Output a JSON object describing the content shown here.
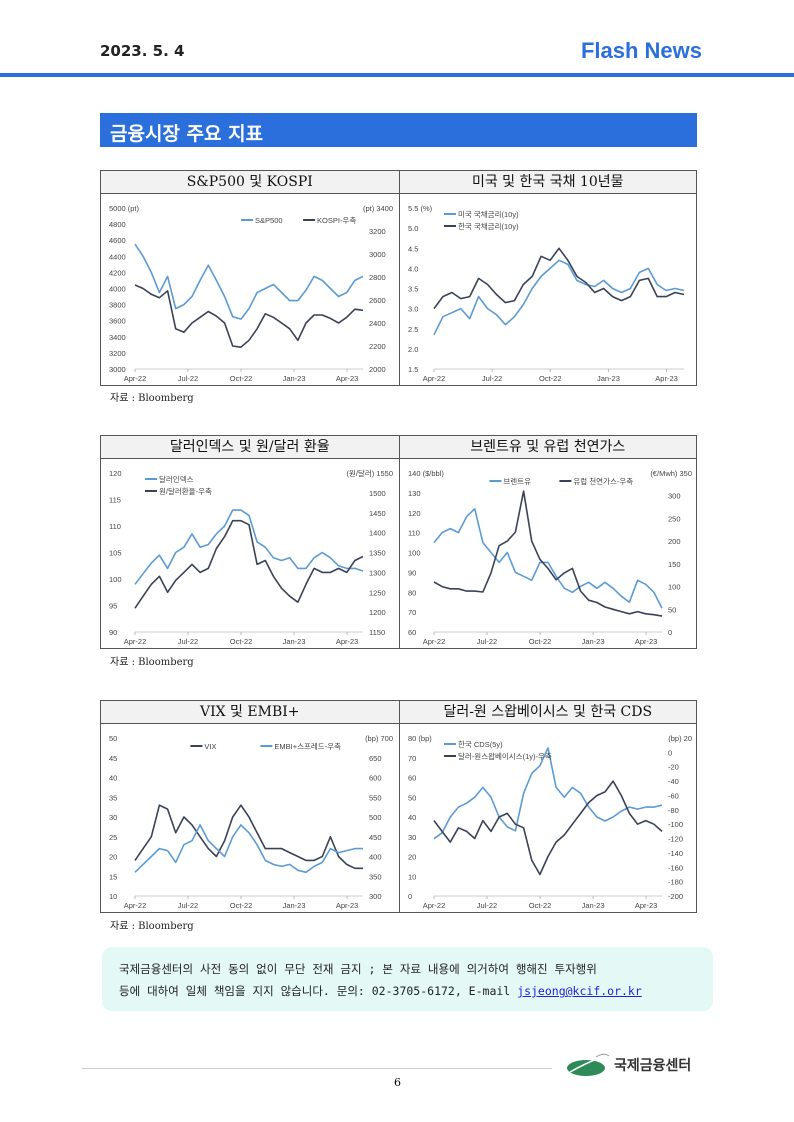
{
  "header": {
    "date": "2023. 5. 4",
    "brand": "Flash News"
  },
  "section_title": "금융시장 주요 지표",
  "source": "자료 : Bloomberg",
  "colors": {
    "accent": "#2a6fdb",
    "light_series": "#5b9bd5",
    "dark_series": "#3a4256"
  },
  "chart_data": [
    {
      "type": "line",
      "title": "S&P500 및 KOSPI",
      "left_unit": "5000 (pt)",
      "right_unit": "(pt) 3400",
      "ylim": [
        3000,
        5000
      ],
      "yticks": [
        "3000",
        "3200",
        "3400",
        "3600",
        "3800",
        "4000",
        "4200",
        "4400",
        "4600",
        "4800"
      ],
      "y2lim": [
        2000,
        3400
      ],
      "y2ticks": [
        "2000",
        "2200",
        "2400",
        "2600",
        "2800",
        "3000",
        "3200"
      ],
      "xticks": [
        "Apr-22",
        "Jul-22",
        "Oct-22",
        "Jan-23",
        "Apr-23"
      ],
      "legend": "top-right",
      "series": [
        {
          "name": "S&P500",
          "axis": "left",
          "color": "light",
          "values": [
            4550,
            4400,
            4200,
            3950,
            4150,
            3750,
            3800,
            3900,
            4100,
            4290,
            4100,
            3900,
            3650,
            3620,
            3750,
            3950,
            4000,
            4050,
            3950,
            3850,
            3850,
            3980,
            4150,
            4100,
            4000,
            3900,
            3950,
            4100,
            4150
          ]
        },
        {
          "name": "KOSPI-우축",
          "axis": "right",
          "color": "dark",
          "values": [
            2730,
            2700,
            2650,
            2620,
            2680,
            2350,
            2320,
            2400,
            2450,
            2500,
            2460,
            2400,
            2200,
            2190,
            2250,
            2350,
            2480,
            2450,
            2400,
            2350,
            2250,
            2400,
            2470,
            2470,
            2440,
            2400,
            2450,
            2520,
            2510
          ]
        }
      ]
    },
    {
      "type": "line",
      "title": "미국 및 한국 국채 10년물",
      "left_unit": "5.5  (%)",
      "right_unit": "",
      "ylim": [
        1.5,
        5.5
      ],
      "yticks": [
        "1.5",
        "2.0",
        "2.5",
        "3.0",
        "3.5",
        "4.0",
        "4.5",
        "5.0"
      ],
      "y2lim": null,
      "y2ticks": [],
      "xticks": [
        "Apr-22",
        "Jul-22",
        "Oct-22",
        "Jan-23",
        "Apr-23"
      ],
      "legend": "top-left",
      "series": [
        {
          "name": "미국 국채금리(10y)",
          "axis": "left",
          "color": "light",
          "values": [
            2.35,
            2.8,
            2.9,
            3.0,
            2.75,
            3.3,
            3.0,
            2.85,
            2.6,
            2.8,
            3.1,
            3.5,
            3.8,
            4.0,
            4.2,
            4.1,
            3.7,
            3.6,
            3.55,
            3.7,
            3.5,
            3.4,
            3.5,
            3.9,
            4.0,
            3.6,
            3.45,
            3.5,
            3.45
          ]
        },
        {
          "name": "한국 국채금리(10y)",
          "axis": "left",
          "color": "dark",
          "values": [
            3.0,
            3.3,
            3.4,
            3.25,
            3.3,
            3.75,
            3.6,
            3.35,
            3.15,
            3.2,
            3.6,
            3.8,
            4.3,
            4.2,
            4.5,
            4.2,
            3.8,
            3.65,
            3.4,
            3.5,
            3.3,
            3.2,
            3.3,
            3.7,
            3.75,
            3.3,
            3.3,
            3.4,
            3.35
          ]
        }
      ]
    },
    {
      "type": "line",
      "title": "달러인덱스 및 원/달러 환율",
      "left_unit": "120",
      "right_unit": "(원/달러) 1550",
      "ylim": [
        90,
        120
      ],
      "yticks": [
        "90",
        "95",
        "100",
        "105",
        "110",
        "115"
      ],
      "y2lim": [
        1150,
        1550
      ],
      "y2ticks": [
        "1150",
        "1200",
        "1250",
        "1300",
        "1350",
        "1400",
        "1450",
        "1500"
      ],
      "xticks": [
        "Apr-22",
        "Jul-22",
        "Oct-22",
        "Jan-23",
        "Apr-23"
      ],
      "legend": "top-left",
      "series": [
        {
          "name": "달러인덱스",
          "axis": "left",
          "color": "light",
          "values": [
            99,
            101,
            103,
            104.5,
            102,
            105,
            106,
            108.5,
            106,
            106.5,
            108.5,
            110,
            113,
            113,
            112,
            107,
            106,
            104,
            103.5,
            104,
            102,
            102,
            104,
            105,
            104,
            102.5,
            102,
            102,
            101.5
          ]
        },
        {
          "name": "원/달러환율-우축",
          "axis": "right",
          "color": "dark",
          "values": [
            1210,
            1240,
            1270,
            1290,
            1250,
            1280,
            1300,
            1320,
            1300,
            1310,
            1360,
            1390,
            1430,
            1430,
            1420,
            1320,
            1330,
            1290,
            1260,
            1240,
            1225,
            1270,
            1310,
            1300,
            1300,
            1310,
            1300,
            1330,
            1340
          ]
        }
      ]
    },
    {
      "type": "line",
      "title": "브렌트유 및 유럽 천연가스",
      "left_unit": "140  ($/bbl)",
      "right_unit": "(€/Mwh)  350",
      "ylim": [
        60,
        140
      ],
      "yticks": [
        "60",
        "70",
        "80",
        "90",
        "100",
        "110",
        "120",
        "130"
      ],
      "y2lim": [
        0,
        350
      ],
      "y2ticks": [
        "0",
        "50",
        "100",
        "150",
        "200",
        "250",
        "300"
      ],
      "xticks": [
        "Apr-22",
        "Jul-22",
        "Oct-22",
        "Jan-23",
        "Apr-23"
      ],
      "legend": "top-center",
      "series": [
        {
          "name": "브렌트유",
          "axis": "left",
          "color": "light",
          "values": [
            105,
            110,
            112,
            110,
            118,
            122,
            105,
            100,
            95,
            100,
            90,
            88,
            86,
            95,
            95,
            88,
            82,
            80,
            83,
            85,
            82,
            85,
            82,
            78,
            75,
            86,
            84,
            80,
            72
          ]
        },
        {
          "name": "유럽 천연가스-우축",
          "axis": "right",
          "color": "dark",
          "values": [
            110,
            100,
            95,
            95,
            90,
            90,
            88,
            130,
            190,
            200,
            220,
            310,
            200,
            160,
            140,
            115,
            130,
            140,
            90,
            70,
            65,
            55,
            50,
            45,
            40,
            45,
            40,
            38,
            35
          ]
        }
      ]
    },
    {
      "type": "line",
      "title": "VIX 및 EMBI+",
      "left_unit": "50",
      "right_unit": "(bp)  700",
      "ylim": [
        10,
        50
      ],
      "yticks": [
        "10",
        "15",
        "20",
        "25",
        "30",
        "35",
        "40",
        "45"
      ],
      "y2lim": [
        300,
        700
      ],
      "y2ticks": [
        "300",
        "350",
        "400",
        "450",
        "500",
        "550",
        "600",
        "650"
      ],
      "xticks": [
        "Apr-22",
        "Jul-22",
        "Oct-22",
        "Jan-23",
        "Apr-23"
      ],
      "legend": "top-center",
      "series": [
        {
          "name": "VIX",
          "axis": "left",
          "color": "dark",
          "values": [
            19,
            22,
            25,
            33,
            32,
            26,
            30,
            28,
            25,
            22,
            20,
            24,
            30,
            33,
            30,
            26,
            22,
            22,
            22,
            21,
            20,
            19,
            19,
            20,
            25,
            20,
            18,
            17,
            17
          ]
        },
        {
          "name": "EMBI+스프레드-우축",
          "axis": "right",
          "color": "light",
          "values": [
            360,
            380,
            400,
            420,
            415,
            385,
            430,
            440,
            480,
            440,
            420,
            400,
            450,
            480,
            460,
            430,
            390,
            380,
            375,
            380,
            365,
            360,
            375,
            385,
            420,
            410,
            415,
            420,
            420
          ]
        }
      ]
    },
    {
      "type": "line",
      "title": "달러-원 스왑베이시스 및 한국 CDS",
      "left_unit": "80   (bp)",
      "right_unit": "(bp)  20",
      "ylim": [
        0,
        80
      ],
      "yticks": [
        "0",
        "10",
        "20",
        "30",
        "40",
        "50",
        "60",
        "70"
      ],
      "y2lim": [
        -200,
        20
      ],
      "y2ticks": [
        "-200",
        "-180",
        "-160",
        "-140",
        "-120",
        "-100",
        "-80",
        "-60",
        "-40",
        "-20",
        "0"
      ],
      "xticks": [
        "Apr-22",
        "Jul-22",
        "Oct-22",
        "Jan-23",
        "Apr-23"
      ],
      "legend": "top-left",
      "series": [
        {
          "name": "한국 CDS(5y)",
          "axis": "left",
          "color": "light",
          "values": [
            29,
            32,
            40,
            45,
            47,
            50,
            55,
            50,
            40,
            35,
            33,
            52,
            62,
            66,
            75,
            55,
            50,
            55,
            52,
            45,
            40,
            38,
            40,
            43,
            45,
            44,
            45,
            45,
            46
          ]
        },
        {
          "name": "달러-원스왑베이시스(1y)-우축",
          "axis": "right",
          "color": "dark",
          "values": [
            -95,
            -110,
            -125,
            -105,
            -110,
            -120,
            -95,
            -110,
            -90,
            -85,
            -100,
            -105,
            -150,
            -170,
            -145,
            -125,
            -115,
            -100,
            -85,
            -70,
            -60,
            -55,
            -40,
            -60,
            -85,
            -100,
            -95,
            -100,
            -110
          ]
        }
      ]
    }
  ],
  "notice": {
    "line1": "국제금융센터의 사전 동의 없이 무단 전재 금지 ; 본 자료 내용에 의거하여 행해진 투자행위",
    "line2": "등에 대하여 일체 책임을 지지 않습니다. 문의: 02-3705-6172, E-mail ",
    "email": "jsjeong@kcif.or.kr"
  },
  "footer": {
    "page": "6",
    "logo_text": "국제금융센터"
  }
}
